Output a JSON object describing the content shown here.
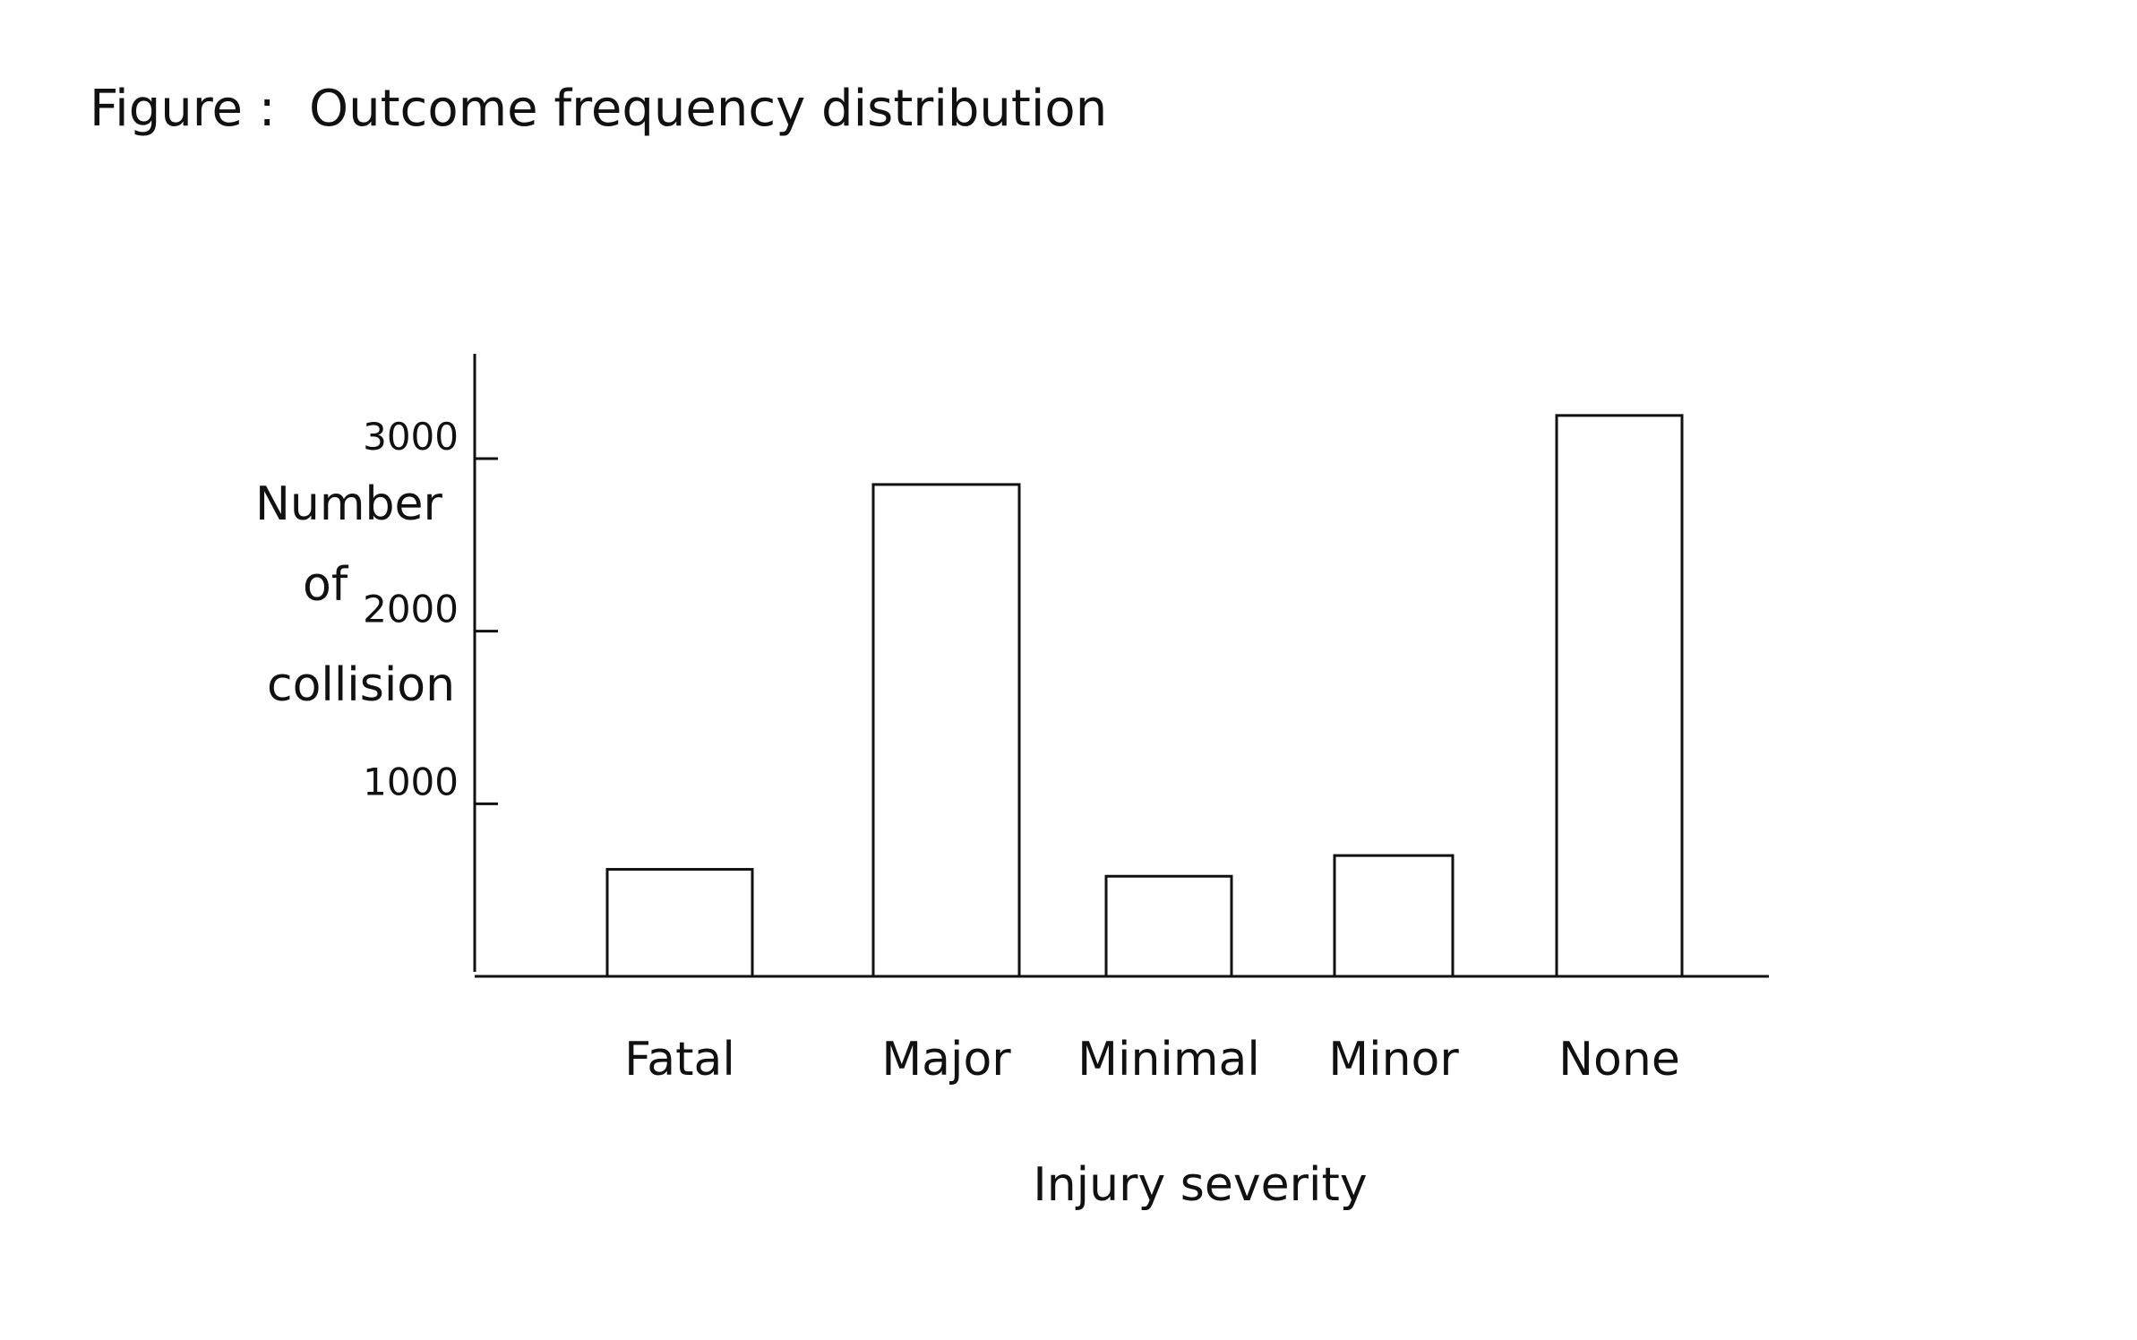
{
  "figure": {
    "prefix": "Figure :",
    "title": "Outcome frequency distribution"
  },
  "chart_data": {
    "type": "bar",
    "title": "Outcome frequency distribution",
    "xlabel": "Injury severity",
    "ylabel_lines": [
      "Number",
      "of",
      "collision"
    ],
    "categories": [
      "Fatal",
      "Major",
      "Minimal",
      "Minor",
      "None"
    ],
    "values": [
      620,
      2850,
      580,
      700,
      3250
    ],
    "ylim": [
      0,
      3600
    ],
    "yticks": [
      1000,
      2000,
      3000
    ],
    "grid": false,
    "legend": "none"
  },
  "colors": {
    "ink": "#111111",
    "background": "#ffffff"
  }
}
